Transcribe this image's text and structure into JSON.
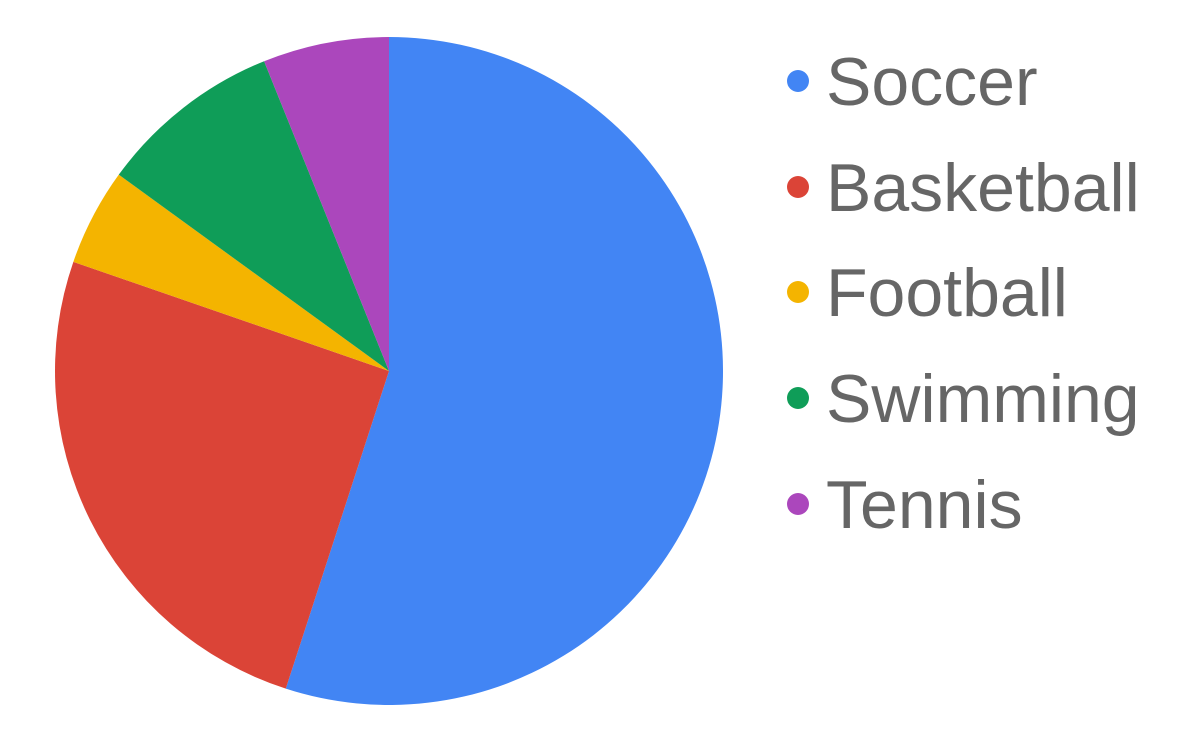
{
  "chart_data": {
    "type": "pie",
    "title": "",
    "categories": [
      "Soccer",
      "Basketball",
      "Football",
      "Swimming",
      "Tennis"
    ],
    "values": [
      55.0,
      25.3,
      4.7,
      8.9,
      6.1
    ],
    "colors": [
      "#4285f4",
      "#db4437",
      "#f4b400",
      "#0f9d58",
      "#ab47bc"
    ],
    "start_angle_deg": 0,
    "direction": "clockwise",
    "legend": "right"
  }
}
